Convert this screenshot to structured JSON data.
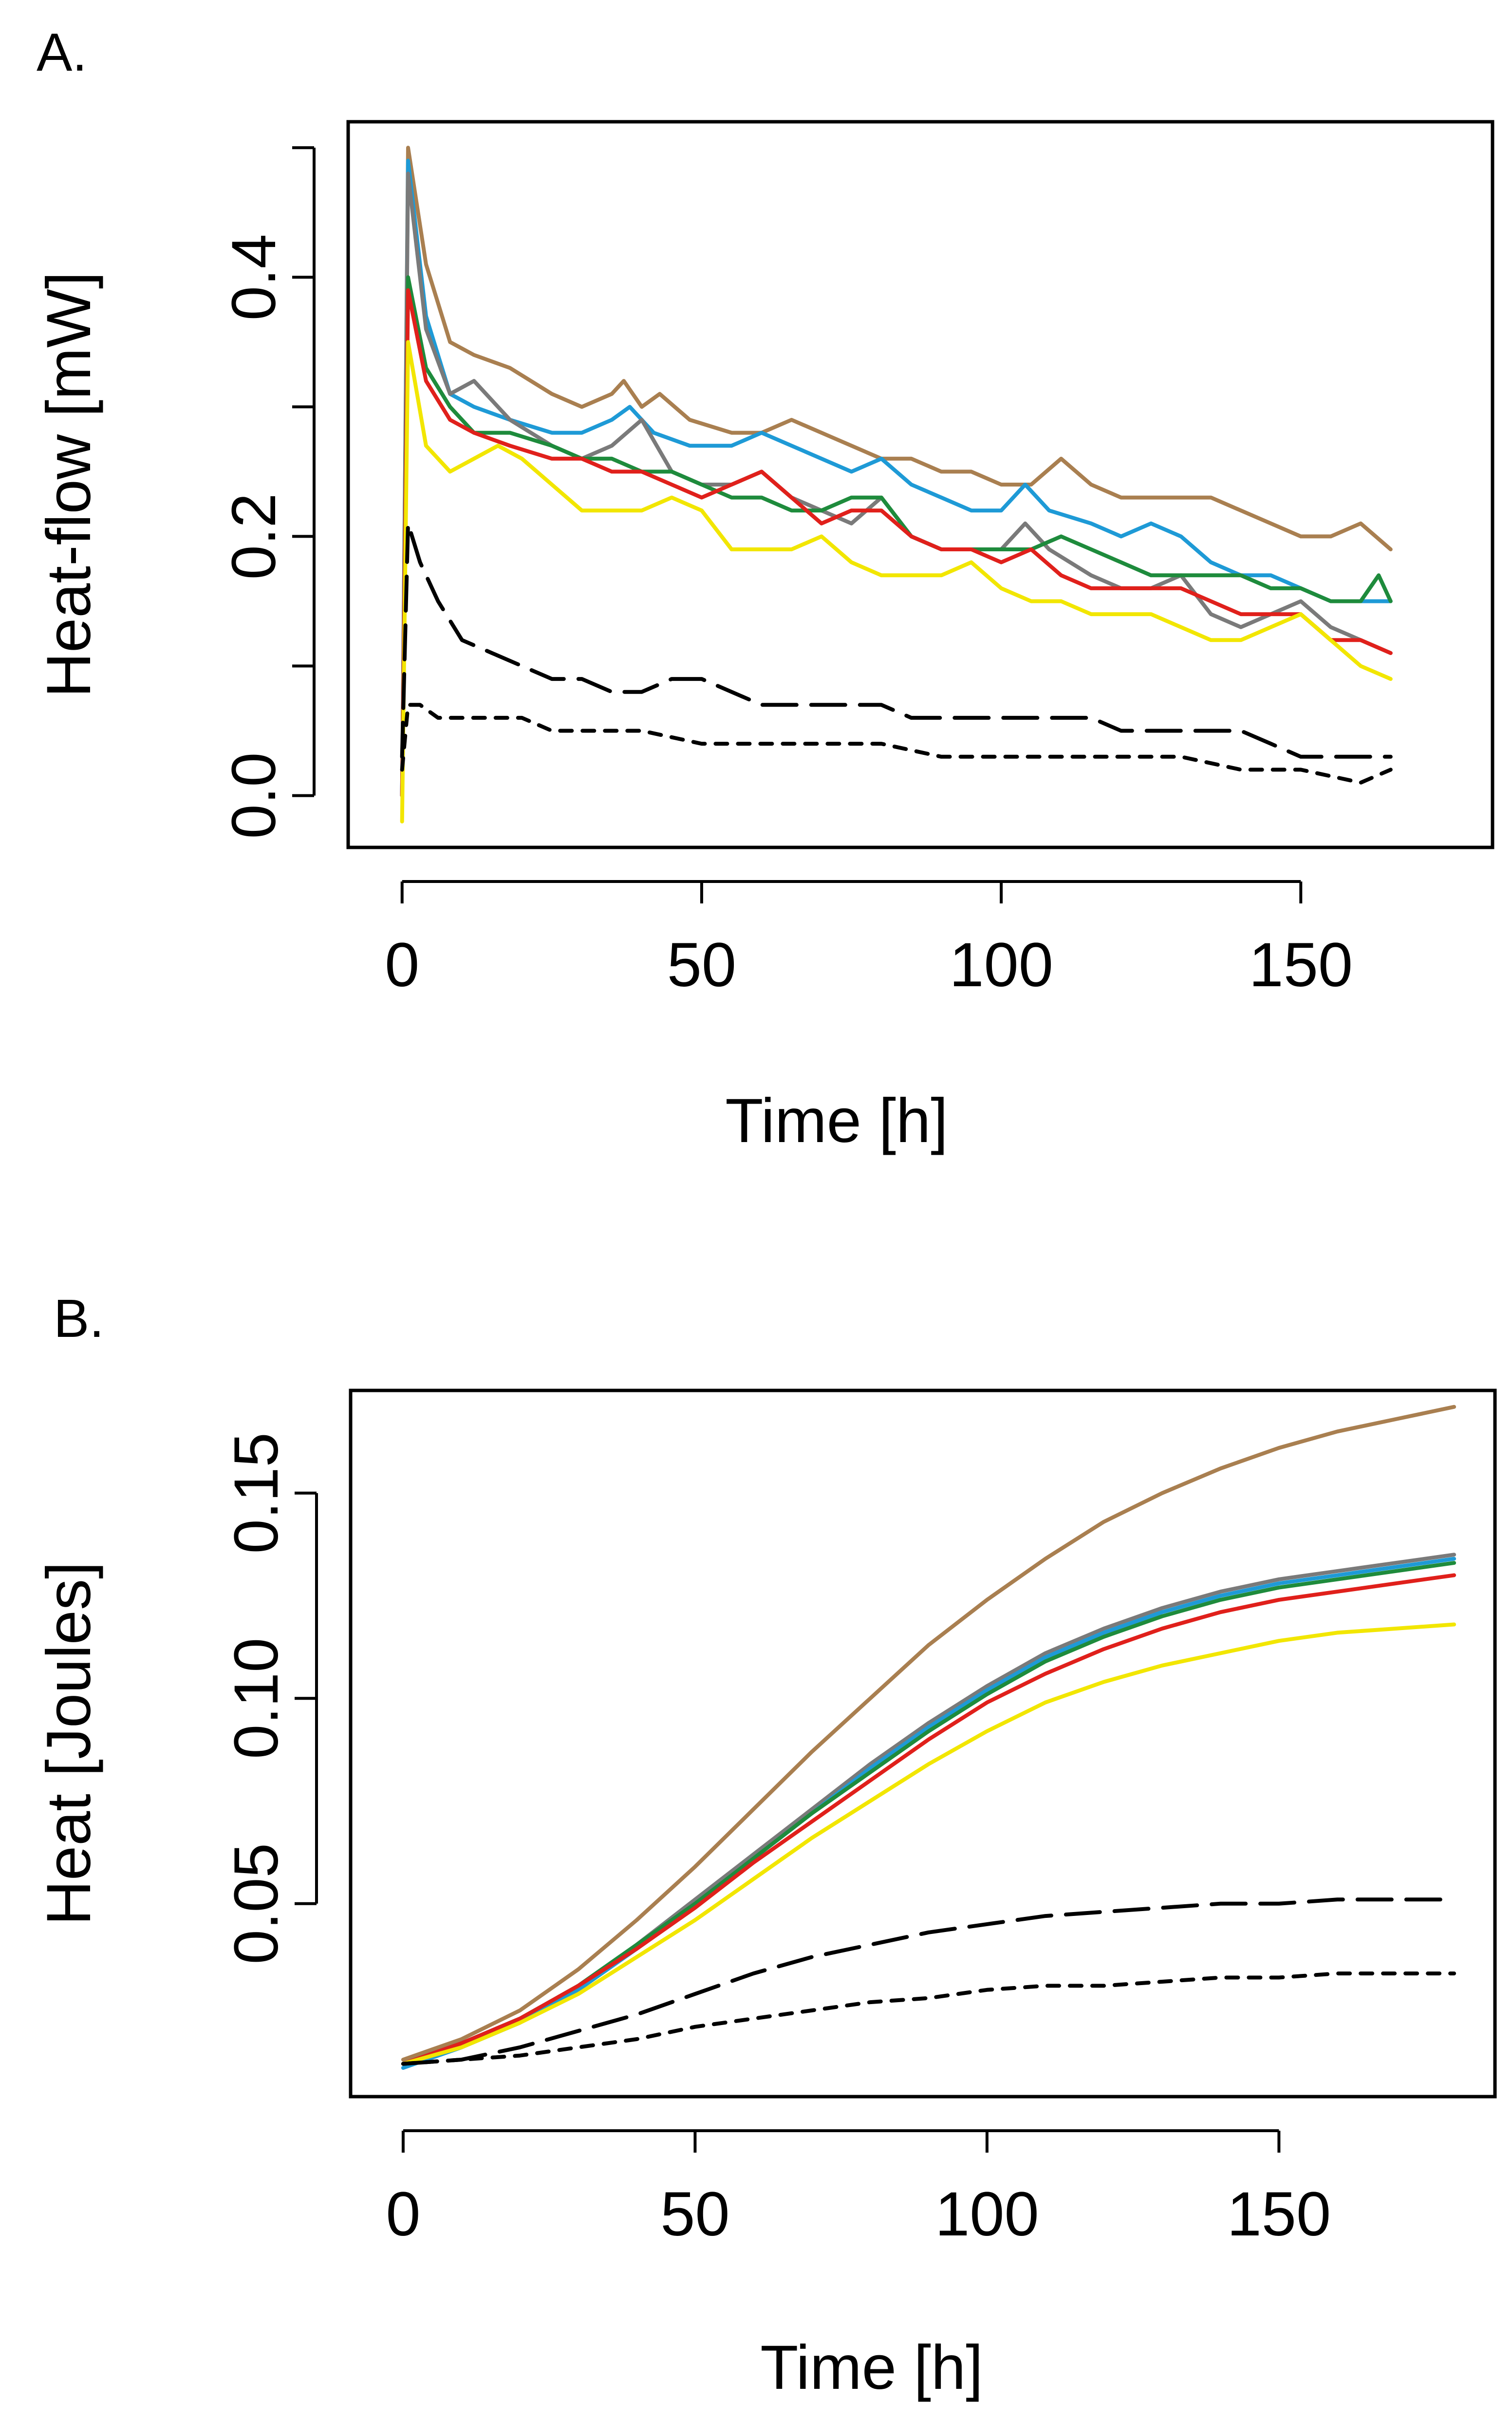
{
  "chart_data": [
    {
      "panel_label": "A.",
      "type": "line",
      "xlabel": "Time [h]",
      "ylabel": "Heat-flow [mW]",
      "xlim": [
        -9,
        182
      ],
      "ylim": [
        -0.04,
        0.52
      ],
      "xticks": [
        0,
        50,
        100,
        150
      ],
      "xtick_labels": [
        "0",
        "50",
        "100",
        "150"
      ],
      "yticks": [
        0.0,
        0.1,
        0.2,
        0.3,
        0.4,
        0.5
      ],
      "ytick_labels": [
        "0.0",
        "",
        "0.2",
        "",
        "0.4",
        ""
      ],
      "grid": false,
      "series": [
        {
          "name": "brown",
          "color": "#A97F50",
          "dash": "solid",
          "x": [
            0,
            1,
            4,
            8,
            12,
            18,
            25,
            30,
            35,
            37,
            40,
            43,
            48,
            55,
            60,
            65,
            70,
            75,
            80,
            85,
            90,
            95,
            100,
            105,
            110,
            115,
            120,
            125,
            130,
            135,
            140,
            145,
            150,
            155,
            160,
            165
          ],
          "y": [
            0.0,
            0.5,
            0.41,
            0.35,
            0.34,
            0.33,
            0.31,
            0.3,
            0.31,
            0.32,
            0.3,
            0.31,
            0.29,
            0.28,
            0.28,
            0.29,
            0.28,
            0.27,
            0.26,
            0.26,
            0.25,
            0.25,
            0.24,
            0.24,
            0.26,
            0.24,
            0.23,
            0.23,
            0.23,
            0.23,
            0.22,
            0.21,
            0.2,
            0.2,
            0.21,
            0.19
          ]
        },
        {
          "name": "blue",
          "color": "#1E9AD6",
          "dash": "solid",
          "x": [
            0,
            1,
            4,
            8,
            12,
            18,
            25,
            30,
            35,
            38,
            42,
            48,
            55,
            60,
            65,
            70,
            75,
            80,
            85,
            90,
            95,
            100,
            104,
            108,
            115,
            120,
            125,
            130,
            135,
            140,
            145,
            150,
            155,
            160,
            165
          ],
          "y": [
            0.0,
            0.49,
            0.37,
            0.31,
            0.3,
            0.29,
            0.28,
            0.28,
            0.29,
            0.3,
            0.28,
            0.27,
            0.27,
            0.28,
            0.27,
            0.26,
            0.25,
            0.26,
            0.24,
            0.23,
            0.22,
            0.22,
            0.24,
            0.22,
            0.21,
            0.2,
            0.21,
            0.2,
            0.18,
            0.17,
            0.17,
            0.16,
            0.15,
            0.15,
            0.15
          ]
        },
        {
          "name": "gray",
          "color": "#7A7A7A",
          "dash": "solid",
          "x": [
            0,
            1,
            4,
            8,
            12,
            18,
            25,
            30,
            35,
            40,
            45,
            50,
            55,
            60,
            65,
            70,
            75,
            80,
            85,
            90,
            95,
            100,
            104,
            108,
            115,
            120,
            125,
            130,
            135,
            140,
            145,
            150,
            155,
            160,
            165
          ],
          "y": [
            0.0,
            0.48,
            0.36,
            0.31,
            0.32,
            0.29,
            0.27,
            0.26,
            0.27,
            0.29,
            0.25,
            0.24,
            0.24,
            0.25,
            0.23,
            0.22,
            0.21,
            0.23,
            0.2,
            0.19,
            0.19,
            0.19,
            0.21,
            0.19,
            0.17,
            0.16,
            0.16,
            0.17,
            0.14,
            0.13,
            0.14,
            0.15,
            0.13,
            0.12,
            0.11
          ]
        },
        {
          "name": "green",
          "color": "#1E8B3C",
          "dash": "solid",
          "x": [
            0,
            1,
            4,
            8,
            12,
            18,
            25,
            30,
            35,
            40,
            45,
            50,
            55,
            60,
            65,
            70,
            75,
            80,
            85,
            90,
            95,
            100,
            105,
            110,
            115,
            120,
            125,
            130,
            135,
            140,
            145,
            150,
            155,
            160,
            163,
            165
          ],
          "y": [
            0.0,
            0.4,
            0.33,
            0.3,
            0.28,
            0.28,
            0.27,
            0.26,
            0.26,
            0.25,
            0.25,
            0.24,
            0.23,
            0.23,
            0.22,
            0.22,
            0.23,
            0.23,
            0.2,
            0.19,
            0.19,
            0.19,
            0.19,
            0.2,
            0.19,
            0.18,
            0.17,
            0.17,
            0.17,
            0.17,
            0.16,
            0.16,
            0.15,
            0.15,
            0.17,
            0.15
          ]
        },
        {
          "name": "red",
          "color": "#E0201B",
          "dash": "solid",
          "x": [
            0,
            1,
            4,
            8,
            12,
            18,
            25,
            30,
            35,
            40,
            45,
            50,
            55,
            60,
            65,
            70,
            75,
            80,
            85,
            90,
            95,
            100,
            105,
            110,
            115,
            120,
            125,
            130,
            135,
            140,
            145,
            150,
            155,
            160,
            165
          ],
          "y": [
            0.0,
            0.39,
            0.32,
            0.29,
            0.28,
            0.27,
            0.26,
            0.26,
            0.25,
            0.25,
            0.24,
            0.23,
            0.24,
            0.25,
            0.23,
            0.21,
            0.22,
            0.22,
            0.2,
            0.19,
            0.19,
            0.18,
            0.19,
            0.17,
            0.16,
            0.16,
            0.16,
            0.16,
            0.15,
            0.14,
            0.14,
            0.14,
            0.12,
            0.12,
            0.11
          ]
        },
        {
          "name": "yellow",
          "color": "#F2E600",
          "dash": "solid",
          "x": [
            0,
            1,
            4,
            8,
            12,
            16,
            20,
            25,
            30,
            35,
            40,
            45,
            50,
            55,
            60,
            65,
            70,
            75,
            80,
            85,
            90,
            95,
            100,
            105,
            110,
            115,
            120,
            125,
            130,
            135,
            140,
            145,
            150,
            155,
            160,
            165
          ],
          "y": [
            -0.02,
            0.35,
            0.27,
            0.25,
            0.26,
            0.27,
            0.26,
            0.24,
            0.22,
            0.22,
            0.22,
            0.23,
            0.22,
            0.19,
            0.19,
            0.19,
            0.2,
            0.18,
            0.17,
            0.17,
            0.17,
            0.18,
            0.16,
            0.15,
            0.15,
            0.14,
            0.14,
            0.14,
            0.13,
            0.12,
            0.12,
            0.13,
            0.14,
            0.12,
            0.1,
            0.09
          ]
        },
        {
          "name": "black-long-dash",
          "color": "#000000",
          "dash": "long",
          "x": [
            0,
            1,
            3,
            6,
            10,
            15,
            20,
            25,
            30,
            35,
            40,
            45,
            50,
            55,
            60,
            65,
            70,
            75,
            80,
            85,
            90,
            95,
            100,
            105,
            110,
            115,
            120,
            125,
            130,
            135,
            140,
            145,
            150,
            155,
            160,
            165
          ],
          "y": [
            0.03,
            0.21,
            0.18,
            0.15,
            0.12,
            0.11,
            0.1,
            0.09,
            0.09,
            0.08,
            0.08,
            0.09,
            0.09,
            0.08,
            0.07,
            0.07,
            0.07,
            0.07,
            0.07,
            0.06,
            0.06,
            0.06,
            0.06,
            0.06,
            0.06,
            0.06,
            0.05,
            0.05,
            0.05,
            0.05,
            0.05,
            0.04,
            0.03,
            0.03,
            0.03,
            0.03
          ]
        },
        {
          "name": "black-short-dash",
          "color": "#000000",
          "dash": "short",
          "x": [
            0,
            1,
            3,
            6,
            10,
            15,
            20,
            25,
            30,
            40,
            50,
            60,
            70,
            80,
            90,
            100,
            110,
            120,
            130,
            140,
            150,
            160,
            165
          ],
          "y": [
            0.02,
            0.07,
            0.07,
            0.06,
            0.06,
            0.06,
            0.06,
            0.05,
            0.05,
            0.05,
            0.04,
            0.04,
            0.04,
            0.04,
            0.03,
            0.03,
            0.03,
            0.03,
            0.03,
            0.02,
            0.02,
            0.01,
            0.02
          ]
        }
      ]
    },
    {
      "panel_label": "B.",
      "type": "line",
      "xlabel": "Time [h]",
      "ylabel": "Heat [Joules]",
      "xlim": [
        -9,
        187
      ],
      "ylim": [
        0.003,
        0.175
      ],
      "xticks": [
        0,
        50,
        100,
        150
      ],
      "xtick_labels": [
        "0",
        "50",
        "100",
        "150"
      ],
      "yticks": [
        0.05,
        0.1,
        0.15
      ],
      "ytick_labels": [
        "0.05",
        "0.10",
        "0.15"
      ],
      "grid": false,
      "series": [
        {
          "name": "brown",
          "color": "#A97F50",
          "dash": "solid",
          "x": [
            0,
            10,
            20,
            30,
            40,
            50,
            60,
            70,
            80,
            90,
            100,
            110,
            120,
            130,
            140,
            150,
            160,
            170,
            180
          ],
          "y": [
            0.012,
            0.017,
            0.024,
            0.034,
            0.046,
            0.059,
            0.073,
            0.087,
            0.1,
            0.113,
            0.124,
            0.134,
            0.143,
            0.15,
            0.156,
            0.161,
            0.165,
            0.168,
            0.171
          ]
        },
        {
          "name": "gray",
          "color": "#7A7A7A",
          "dash": "solid",
          "x": [
            0,
            10,
            20,
            30,
            40,
            50,
            60,
            70,
            80,
            90,
            100,
            110,
            120,
            130,
            140,
            150,
            160,
            170,
            180
          ],
          "y": [
            0.011,
            0.016,
            0.022,
            0.03,
            0.04,
            0.051,
            0.062,
            0.073,
            0.084,
            0.094,
            0.103,
            0.111,
            0.117,
            0.122,
            0.126,
            0.129,
            0.131,
            0.133,
            0.135
          ]
        },
        {
          "name": "blue",
          "color": "#1E9AD6",
          "dash": "solid",
          "x": [
            0,
            10,
            20,
            30,
            40,
            50,
            60,
            70,
            80,
            90,
            100,
            110,
            120,
            130,
            140,
            150,
            160,
            170,
            180
          ],
          "y": [
            0.01,
            0.015,
            0.021,
            0.029,
            0.039,
            0.05,
            0.061,
            0.072,
            0.083,
            0.093,
            0.102,
            0.11,
            0.116,
            0.121,
            0.125,
            0.128,
            0.13,
            0.132,
            0.134
          ]
        },
        {
          "name": "green",
          "color": "#1E8B3C",
          "dash": "solid",
          "x": [
            0,
            10,
            20,
            30,
            40,
            50,
            60,
            70,
            80,
            90,
            100,
            110,
            120,
            130,
            140,
            150,
            160,
            170,
            180
          ],
          "y": [
            0.011,
            0.016,
            0.022,
            0.03,
            0.04,
            0.05,
            0.061,
            0.072,
            0.082,
            0.092,
            0.101,
            0.109,
            0.115,
            0.12,
            0.124,
            0.127,
            0.129,
            0.131,
            0.133
          ]
        },
        {
          "name": "red",
          "color": "#E0201B",
          "dash": "solid",
          "x": [
            0,
            10,
            20,
            30,
            40,
            50,
            60,
            70,
            80,
            90,
            100,
            110,
            120,
            130,
            140,
            150,
            160,
            170,
            180
          ],
          "y": [
            0.011,
            0.016,
            0.022,
            0.03,
            0.039,
            0.049,
            0.06,
            0.07,
            0.08,
            0.09,
            0.099,
            0.106,
            0.112,
            0.117,
            0.121,
            0.124,
            0.126,
            0.128,
            0.13
          ]
        },
        {
          "name": "yellow",
          "color": "#F2E600",
          "dash": "solid",
          "x": [
            0,
            10,
            20,
            30,
            40,
            50,
            60,
            70,
            80,
            90,
            100,
            110,
            120,
            130,
            140,
            150,
            160,
            170,
            180
          ],
          "y": [
            0.011,
            0.015,
            0.021,
            0.028,
            0.037,
            0.046,
            0.056,
            0.066,
            0.075,
            0.084,
            0.092,
            0.099,
            0.104,
            0.108,
            0.111,
            0.114,
            0.116,
            0.117,
            0.118
          ]
        },
        {
          "name": "black-long-dash",
          "color": "#000000",
          "dash": "long",
          "x": [
            0,
            10,
            20,
            30,
            40,
            50,
            60,
            70,
            80,
            90,
            100,
            110,
            120,
            130,
            140,
            150,
            160,
            170,
            180
          ],
          "y": [
            0.011,
            0.012,
            0.015,
            0.019,
            0.023,
            0.028,
            0.033,
            0.037,
            0.04,
            0.043,
            0.045,
            0.047,
            0.048,
            0.049,
            0.05,
            0.05,
            0.051,
            0.051,
            0.051
          ]
        },
        {
          "name": "black-short-dash",
          "color": "#000000",
          "dash": "short",
          "x": [
            0,
            10,
            20,
            30,
            40,
            50,
            60,
            70,
            80,
            90,
            100,
            110,
            120,
            130,
            140,
            150,
            160,
            170,
            180
          ],
          "y": [
            0.011,
            0.012,
            0.013,
            0.015,
            0.017,
            0.02,
            0.022,
            0.024,
            0.026,
            0.027,
            0.029,
            0.03,
            0.03,
            0.031,
            0.032,
            0.032,
            0.033,
            0.033,
            0.033
          ]
        }
      ]
    }
  ]
}
